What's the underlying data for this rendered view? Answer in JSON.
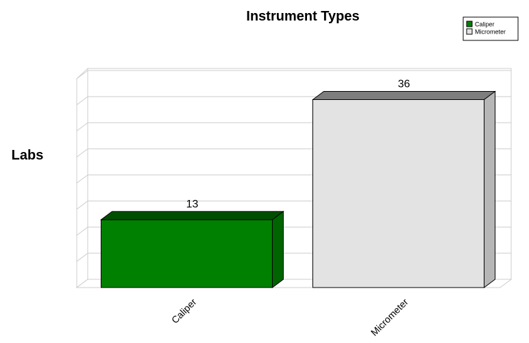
{
  "chart_data": {
    "type": "bar",
    "title": "Instrument Types",
    "xlabel": "",
    "ylabel": "Labs",
    "categories": [
      "Caliper",
      "Micrometer"
    ],
    "values": [
      13,
      36
    ],
    "ylim": [
      0,
      40
    ],
    "grid": true,
    "three_d": true,
    "legend_position": "top-right",
    "colors": [
      "#008000",
      "#E3E3E3"
    ],
    "legend": [
      {
        "label": "Caliper",
        "color": "#008000"
      },
      {
        "label": "Micrometer",
        "color": "#E3E3E3"
      }
    ]
  }
}
